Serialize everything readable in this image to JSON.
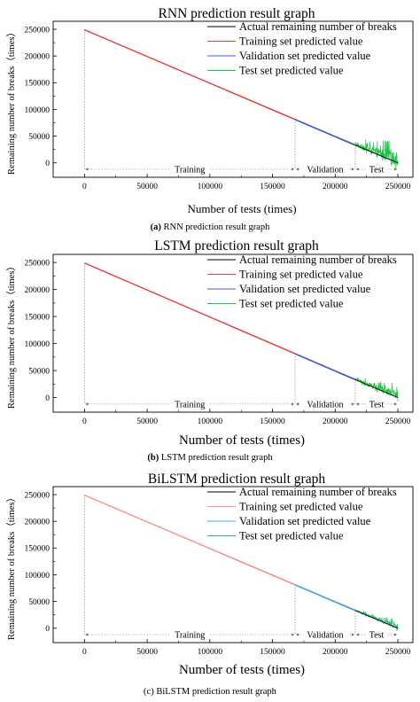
{
  "chart_data": [
    {
      "type": "line",
      "title": "RNN prediction result graph",
      "caption_letter": "(a)",
      "caption_text": "RNN prediction result graph",
      "xlabel": "Number of tests (times)",
      "ylabel": "Remaining number of breaks（times）",
      "xlim": [
        -25000,
        262000
      ],
      "ylim": [
        -27000,
        265000
      ],
      "x_ticks": [
        0,
        50000,
        100000,
        150000,
        200000,
        250000
      ],
      "y_ticks": [
        0,
        50000,
        100000,
        150000,
        200000,
        250000
      ],
      "x_tick_labels": [
        "0",
        "50000",
        "100000",
        "150000",
        "200000",
        "250000"
      ],
      "y_tick_labels": [
        "0",
        "50000",
        "100000",
        "150000",
        "200000",
        "250000"
      ],
      "legend": [
        {
          "label": "Actual remaining number of breaks",
          "color": "#000000"
        },
        {
          "label": "Training set predicted value",
          "color": "#e8423f"
        },
        {
          "label": "Validation  set predicted value",
          "color": "#4a5bd4"
        },
        {
          "label": "Test set predicted value",
          "color": "#19c23f"
        }
      ],
      "legend_position": "top-right",
      "series": [
        {
          "name": "Actual remaining number of breaks",
          "x": [
            0,
            250000
          ],
          "y": [
            249000,
            0
          ]
        },
        {
          "name": "Training set predicted value",
          "x": [
            0,
            168000
          ],
          "y": [
            249000,
            81000
          ]
        },
        {
          "name": "Validation  set predicted value",
          "x": [
            168000,
            216000
          ],
          "y": [
            81000,
            33000
          ]
        },
        {
          "name": "Test set predicted value",
          "x": [
            216000,
            250000
          ],
          "y": [
            33000,
            0
          ],
          "noise_amplitude": 22000
        }
      ],
      "segments": [
        {
          "label": "Training",
          "from": 0,
          "to": 168000
        },
        {
          "label": "Validation",
          "from": 168000,
          "to": 216000
        },
        {
          "label": "Test",
          "from": 216000,
          "to": 250000
        }
      ],
      "segment_line_y": -12000
    },
    {
      "type": "line",
      "title": "LSTM prediction result graph",
      "caption_letter": "(b)",
      "caption_text": "LSTM prediction result graph",
      "xlabel": "Number of tests (times)",
      "ylabel": "Remaining number of breaks（times）",
      "xlim": [
        -25000,
        262000
      ],
      "ylim": [
        -27000,
        265000
      ],
      "x_ticks": [
        0,
        50000,
        100000,
        150000,
        200000,
        250000
      ],
      "y_ticks": [
        0,
        50000,
        100000,
        150000,
        200000,
        250000
      ],
      "x_tick_labels": [
        "0",
        "50000",
        "100000",
        "150000",
        "200000",
        "250000"
      ],
      "y_tick_labels": [
        "0",
        "50000",
        "100000",
        "150000",
        "200000",
        "250000"
      ],
      "legend": [
        {
          "label": "Actual remaining number of breaks",
          "color": "#000000"
        },
        {
          "label": "Training set predicted value",
          "color": "#e8423f"
        },
        {
          "label": "Validation  set predicted value",
          "color": "#4a5bd4"
        },
        {
          "label": "Test set predicted value",
          "color": "#19c23f"
        }
      ],
      "legend_position": "top-right",
      "series": [
        {
          "name": "Actual remaining number of breaks",
          "x": [
            0,
            250000
          ],
          "y": [
            249000,
            0
          ]
        },
        {
          "name": "Training set predicted value",
          "x": [
            0,
            168000
          ],
          "y": [
            249000,
            81000
          ]
        },
        {
          "name": "Validation  set predicted value",
          "x": [
            168000,
            216000
          ],
          "y": [
            81000,
            33000
          ]
        },
        {
          "name": "Test set predicted value",
          "x": [
            216000,
            250000
          ],
          "y": [
            33000,
            0
          ],
          "noise_amplitude": 14000
        }
      ],
      "segments": [
        {
          "label": "Training",
          "from": 0,
          "to": 168000
        },
        {
          "label": "Validation",
          "from": 168000,
          "to": 216000
        },
        {
          "label": "Test",
          "from": 216000,
          "to": 250000
        }
      ],
      "segment_line_y": -12000
    },
    {
      "type": "line",
      "title": "BiLSTM prediction result graph",
      "caption_letter": "",
      "caption_text": "(c) BiLSTM prediction result graph",
      "xlabel": "Number of tests (times)",
      "ylabel": "Remaining number of breaks（times）",
      "xlim": [
        -25000,
        262000
      ],
      "ylim": [
        -27000,
        265000
      ],
      "x_ticks": [
        0,
        50000,
        100000,
        150000,
        200000,
        250000
      ],
      "y_ticks": [
        0,
        50000,
        100000,
        150000,
        200000,
        250000
      ],
      "x_tick_labels": [
        "0",
        "50000",
        "100000",
        "150000",
        "200000",
        "250000"
      ],
      "y_tick_labels": [
        "0",
        "50000",
        "100000",
        "150000",
        "200000",
        "250000"
      ],
      "legend": [
        {
          "label": "Actual remaining number of breaks",
          "color": "#000000"
        },
        {
          "label": "Training set predicted value",
          "color": "#ff8f8f"
        },
        {
          "label": "Validation  set predicted value",
          "color": "#4aa8e6"
        },
        {
          "label": "Test set predicted value",
          "color": "#1fb86a"
        }
      ],
      "legend_position": "top-right",
      "series": [
        {
          "name": "Actual remaining number of breaks",
          "x": [
            0,
            250000
          ],
          "y": [
            249000,
            0
          ]
        },
        {
          "name": "Training set predicted value",
          "x": [
            0,
            168000
          ],
          "y": [
            249000,
            81000
          ]
        },
        {
          "name": "Validation  set predicted value",
          "x": [
            168000,
            216000
          ],
          "y": [
            81000,
            33000
          ]
        },
        {
          "name": "Test set predicted value",
          "x": [
            216000,
            250000
          ],
          "y": [
            33000,
            0
          ],
          "noise_amplitude": 8000
        }
      ],
      "segments": [
        {
          "label": "Training",
          "from": 0,
          "to": 168000
        },
        {
          "label": "Validation",
          "from": 168000,
          "to": 216000
        },
        {
          "label": "Test",
          "from": 216000,
          "to": 250000
        }
      ],
      "segment_line_y": -12000
    }
  ]
}
